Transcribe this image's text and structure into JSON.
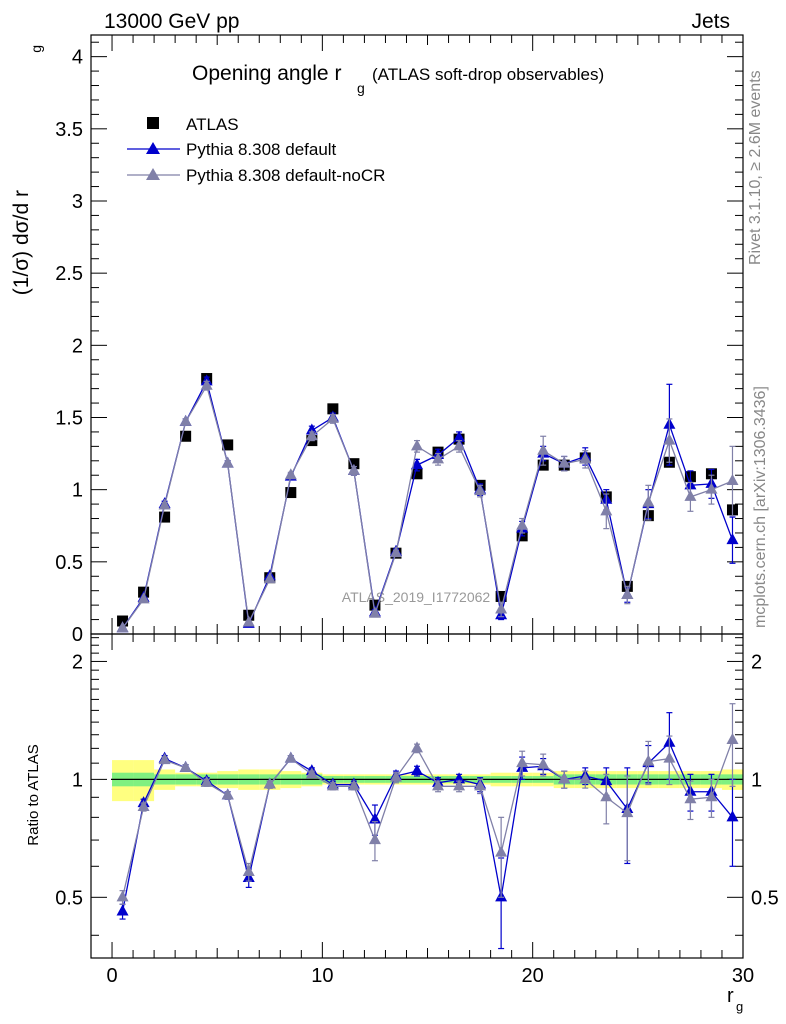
{
  "header": {
    "left": "13000 GeV pp",
    "right": "Jets"
  },
  "side_labels": {
    "rivet": "Rivet 3.1.10, ≥ 2.6M events",
    "mcplots": "mcplots.cern.ch [arXiv:1306.3436]"
  },
  "watermark": "ATLAS_2019_I1772062",
  "chart_data": [
    {
      "type": "scatter",
      "title": "Opening angle r",
      "title_sub": "g",
      "title_suffix": "(ATLAS soft-drop observables)",
      "ylabel": "(1/σ) dσ/d r",
      "ylabel_sub": "g",
      "xlim": [
        -1,
        30
      ],
      "ylim": [
        0,
        4.15
      ],
      "yticks": [
        0,
        0.5,
        1,
        1.5,
        2,
        2.5,
        3,
        3.5,
        4
      ],
      "ytick_labels": [
        "0",
        "0.5",
        "1",
        "1.5",
        "2",
        "2.5",
        "3",
        "3.5",
        "4"
      ],
      "legend_position": "top-left",
      "x": [
        0.5,
        1.5,
        2.5,
        3.5,
        4.5,
        5.5,
        6.5,
        7.5,
        8.5,
        9.5,
        10.5,
        11.5,
        12.5,
        13.5,
        14.5,
        15.5,
        16.5,
        17.5,
        18.5,
        19.5,
        20.5,
        21.5,
        22.5,
        23.5,
        24.5,
        25.5,
        26.5,
        27.5,
        28.5,
        29.5
      ],
      "series": [
        {
          "name": "ATLAS",
          "color": "#000000",
          "marker": "square",
          "values": [
            0.09,
            0.29,
            0.81,
            1.37,
            1.77,
            1.31,
            0.13,
            0.39,
            0.98,
            1.34,
            1.56,
            1.18,
            0.2,
            0.56,
            1.11,
            1.26,
            1.35,
            1.03,
            0.26,
            0.68,
            1.17,
            1.17,
            1.22,
            0.95,
            0.33,
            0.82,
            1.19,
            1.09,
            1.11,
            0.86
          ],
          "errors": [
            0,
            0,
            0,
            0,
            0,
            0,
            0,
            0,
            0,
            0,
            0,
            0,
            0,
            0,
            0,
            0,
            0,
            0,
            0,
            0,
            0,
            0,
            0,
            0,
            0,
            0,
            0,
            0,
            0,
            0
          ]
        },
        {
          "name": "Pythia 8.308 default",
          "color": "#0000cc",
          "marker": "triangle",
          "values": [
            0.04,
            0.25,
            0.9,
            1.47,
            1.75,
            1.18,
            0.07,
            0.4,
            1.09,
            1.41,
            1.5,
            1.13,
            0.15,
            0.57,
            1.17,
            1.24,
            1.36,
            1.0,
            0.13,
            0.73,
            1.25,
            1.18,
            1.23,
            0.93,
            0.27,
            0.9,
            1.45,
            1.03,
            1.04,
            0.65
          ],
          "errors": [
            0.01,
            0.01,
            0.02,
            0.02,
            0.03,
            0.02,
            0.01,
            0.01,
            0.02,
            0.03,
            0.03,
            0.03,
            0.02,
            0.02,
            0.04,
            0.04,
            0.04,
            0.04,
            0.03,
            0.05,
            0.05,
            0.05,
            0.06,
            0.07,
            0.05,
            0.1,
            0.28,
            0.1,
            0.1,
            0.16
          ]
        },
        {
          "name": "Pythia 8.308 default-noCR",
          "color": "#8080a8",
          "marker": "triangle",
          "values": [
            0.04,
            0.24,
            0.89,
            1.47,
            1.72,
            1.18,
            0.08,
            0.38,
            1.1,
            1.37,
            1.49,
            1.13,
            0.14,
            0.56,
            1.3,
            1.21,
            1.3,
            0.99,
            0.17,
            0.75,
            1.27,
            1.18,
            1.21,
            0.85,
            0.27,
            0.91,
            1.34,
            0.95,
            1.0,
            1.06
          ],
          "errors": [
            0.01,
            0.01,
            0.02,
            0.02,
            0.03,
            0.02,
            0.01,
            0.01,
            0.02,
            0.03,
            0.03,
            0.03,
            0.02,
            0.02,
            0.04,
            0.04,
            0.04,
            0.04,
            0.05,
            0.05,
            0.1,
            0.05,
            0.06,
            0.12,
            0.06,
            0.12,
            0.15,
            0.1,
            0.1,
            0.24
          ]
        }
      ]
    },
    {
      "type": "scatter",
      "ylabel": "Ratio to ATLAS",
      "xlabel": "r",
      "xlabel_sub": "g",
      "xlim": [
        -1,
        30
      ],
      "ylim": [
        0.35,
        2.35
      ],
      "xticks": [
        0,
        10,
        20,
        30
      ],
      "xtick_labels": [
        "0",
        "10",
        "20",
        "30"
      ],
      "yticks": [
        0.5,
        1,
        2
      ],
      "ytick_labels": [
        "0.5",
        "1",
        "2"
      ],
      "band_outer_color": "#ffff80",
      "band_inner_color": "#80f080",
      "band_outer": [
        0.12,
        0.12,
        0.06,
        0.04,
        0.04,
        0.05,
        0.06,
        0.06,
        0.05,
        0.04,
        0.03,
        0.03,
        0.03,
        0.03,
        0.03,
        0.03,
        0.03,
        0.03,
        0.04,
        0.04,
        0.04,
        0.05,
        0.05,
        0.05,
        0.05,
        0.05,
        0.05,
        0.05,
        0.05,
        0.06
      ],
      "band_inner": [
        0.04,
        0.04,
        0.03,
        0.03,
        0.03,
        0.03,
        0.03,
        0.03,
        0.03,
        0.03,
        0.02,
        0.02,
        0.02,
        0.02,
        0.02,
        0.02,
        0.02,
        0.02,
        0.02,
        0.02,
        0.02,
        0.03,
        0.03,
        0.03,
        0.03,
        0.03,
        0.03,
        0.03,
        0.03,
        0.03
      ],
      "x": [
        0.5,
        1.5,
        2.5,
        3.5,
        4.5,
        5.5,
        6.5,
        7.5,
        8.5,
        9.5,
        10.5,
        11.5,
        12.5,
        13.5,
        14.5,
        15.5,
        16.5,
        17.5,
        18.5,
        19.5,
        20.5,
        21.5,
        22.5,
        23.5,
        24.5,
        25.5,
        26.5,
        27.5,
        28.5,
        29.5
      ],
      "series": [
        {
          "name": "Pythia 8.308 default",
          "color": "#0000cc",
          "values": [
            0.46,
            0.87,
            1.13,
            1.07,
            0.99,
            0.91,
            0.56,
            0.97,
            1.13,
            1.05,
            0.97,
            0.97,
            0.79,
            1.02,
            1.05,
            0.98,
            1.0,
            0.97,
            0.5,
            1.07,
            1.08,
            1.0,
            1.02,
            0.99,
            0.84,
            1.1,
            1.24,
            0.93,
            0.93,
            0.8
          ],
          "errors": [
            0.02,
            0.02,
            0.02,
            0.02,
            0.02,
            0.02,
            0.03,
            0.02,
            0.02,
            0.02,
            0.02,
            0.02,
            0.07,
            0.03,
            0.03,
            0.03,
            0.03,
            0.04,
            0.13,
            0.07,
            0.05,
            0.05,
            0.05,
            0.08,
            0.23,
            0.12,
            0.24,
            0.1,
            0.1,
            0.2
          ]
        },
        {
          "name": "Pythia 8.308 default-noCR",
          "color": "#8080a8",
          "values": [
            0.5,
            0.85,
            1.12,
            1.07,
            0.98,
            0.91,
            0.58,
            0.97,
            1.13,
            1.03,
            0.96,
            0.96,
            0.7,
            1.01,
            1.2,
            0.96,
            0.96,
            0.96,
            0.65,
            1.1,
            1.09,
            1.0,
            1.0,
            0.9,
            0.82,
            1.11,
            1.13,
            0.89,
            0.9,
            1.26
          ],
          "errors": [
            0.02,
            0.02,
            0.02,
            0.02,
            0.02,
            0.02,
            0.03,
            0.02,
            0.02,
            0.02,
            0.02,
            0.02,
            0.08,
            0.03,
            0.03,
            0.03,
            0.03,
            0.04,
            0.15,
            0.08,
            0.07,
            0.05,
            0.05,
            0.13,
            0.2,
            0.14,
            0.16,
            0.1,
            0.1,
            0.3
          ]
        }
      ]
    }
  ]
}
